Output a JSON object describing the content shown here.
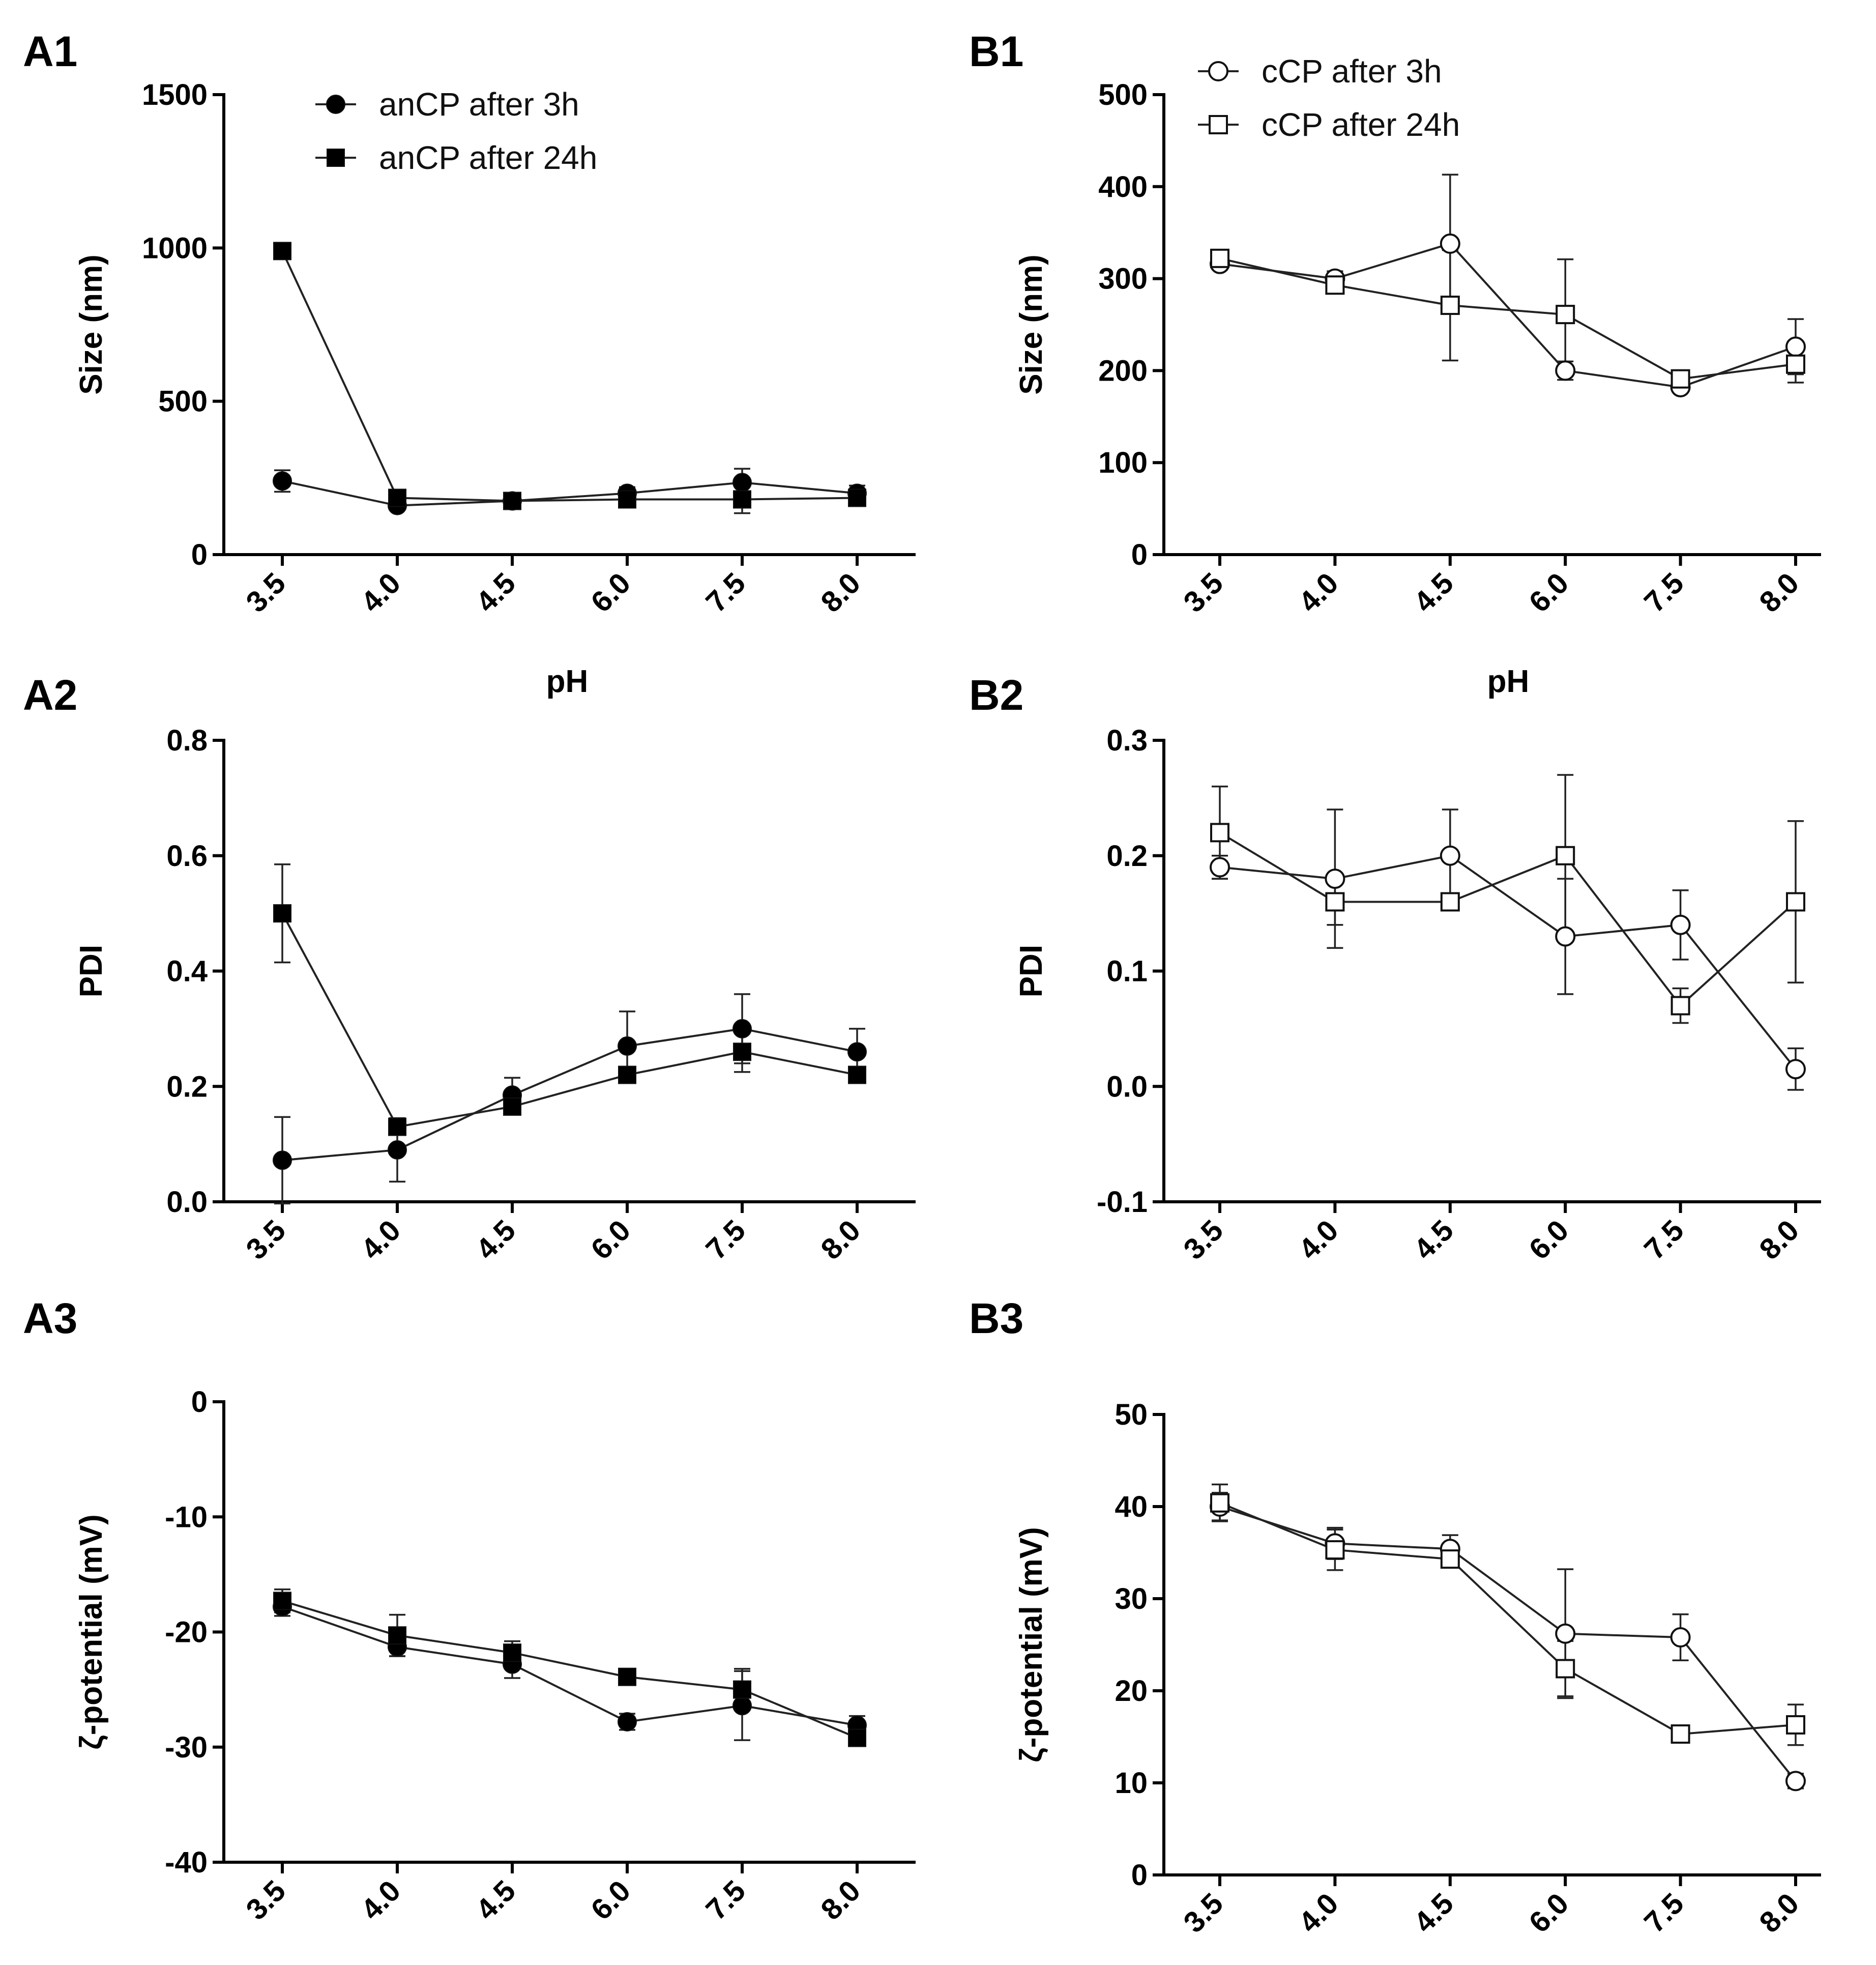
{
  "figure": {
    "panels": [
      "A1",
      "A2",
      "A3",
      "B1",
      "B2",
      "B3"
    ]
  },
  "chart_data": [
    {
      "id": "A1",
      "panel_label": "A1",
      "type": "line",
      "title": "",
      "xlabel": "pH",
      "ylabel": "Size (nm)",
      "categories": [
        "3.5",
        "4.0",
        "4.5",
        "6.0",
        "7.5",
        "8.0"
      ],
      "ylim": [
        0,
        1500
      ],
      "yticks": [
        0,
        500,
        1000,
        1500
      ],
      "legend": "top",
      "series": [
        {
          "name": "anCP after 3h",
          "marker": "circle",
          "fill": "filled",
          "values": [
            240,
            160,
            175,
            200,
            235,
            200
          ],
          "errors": [
            35,
            12,
            10,
            20,
            45,
            25
          ]
        },
        {
          "name": "anCP after 24h",
          "marker": "square",
          "fill": "filled",
          "values": [
            990,
            185,
            175,
            180,
            180,
            185
          ],
          "errors": [
            25,
            15,
            15,
            12,
            45,
            20
          ]
        }
      ]
    },
    {
      "id": "A2",
      "panel_label": "A2",
      "type": "line",
      "title": "",
      "xlabel": "",
      "ylabel": "PDI",
      "categories": [
        "3.5",
        "4.0",
        "4.5",
        "6.0",
        "7.5",
        "8.0"
      ],
      "ylim": [
        0,
        0.8
      ],
      "yticks": [
        0.0,
        0.2,
        0.4,
        0.6,
        0.8
      ],
      "series": [
        {
          "name": "anCP after 3h",
          "marker": "circle",
          "fill": "filled",
          "values": [
            0.072,
            0.09,
            0.185,
            0.27,
            0.3,
            0.26
          ],
          "errors": [
            0.075,
            0.055,
            0.03,
            0.06,
            0.06,
            0.04
          ]
        },
        {
          "name": "anCP after 24h",
          "marker": "square",
          "fill": "filled",
          "values": [
            0.5,
            0.13,
            0.165,
            0.22,
            0.26,
            0.22
          ],
          "errors": [
            0.085,
            0.01,
            0.01,
            0.01,
            0.035,
            0.01
          ]
        }
      ]
    },
    {
      "id": "A3",
      "panel_label": "A3",
      "type": "line",
      "title": "",
      "xlabel": "",
      "ylabel": "ζ-potential (mV)",
      "categories": [
        "3.5",
        "4.0",
        "4.5",
        "6.0",
        "7.5",
        "8.0"
      ],
      "ylim": [
        -40,
        0
      ],
      "yticks": [
        -40,
        -30,
        -20,
        -10,
        0
      ],
      "series": [
        {
          "name": "anCP after 3h",
          "marker": "circle",
          "fill": "filled",
          "values": [
            -17.8,
            -21.3,
            -22.8,
            -27.8,
            -26.4,
            -28.1
          ],
          "errors": [
            0.8,
            0.8,
            1.2,
            0.7,
            3.0,
            0.8
          ]
        },
        {
          "name": "anCP after 24h",
          "marker": "square",
          "fill": "filled",
          "values": [
            -17.3,
            -20.3,
            -21.8,
            -23.9,
            -25.0,
            -29.2
          ],
          "errors": [
            1.0,
            1.8,
            1.0,
            0.5,
            1.8,
            0.5
          ]
        }
      ]
    },
    {
      "id": "B1",
      "panel_label": "B1",
      "type": "line",
      "title": "",
      "xlabel": "pH",
      "ylabel": "Size (nm)",
      "categories": [
        "3.5",
        "4.0",
        "4.5",
        "6.0",
        "7.5",
        "8.0"
      ],
      "ylim": [
        0,
        500
      ],
      "yticks": [
        0,
        100,
        200,
        300,
        400,
        500
      ],
      "legend": "top",
      "series": [
        {
          "name": "cCP after 3h",
          "marker": "circle",
          "fill": "open",
          "values": [
            316,
            300,
            338,
            200,
            182,
            226
          ],
          "errors": [
            6,
            8,
            75,
            10,
            5,
            30
          ]
        },
        {
          "name": "cCP after 24h",
          "marker": "square",
          "fill": "open",
          "values": [
            322,
            293,
            271,
            261,
            191,
            207
          ],
          "errors": [
            6,
            6,
            60,
            60,
            8,
            20
          ]
        }
      ]
    },
    {
      "id": "B2",
      "panel_label": "B2",
      "type": "line",
      "title": "",
      "xlabel": "",
      "ylabel": "PDI",
      "categories": [
        "3.5",
        "4.0",
        "4.5",
        "6.0",
        "7.5",
        "8.0"
      ],
      "ylim": [
        -0.1,
        0.3
      ],
      "yticks": [
        -0.1,
        0.0,
        0.1,
        0.2,
        0.3
      ],
      "series": [
        {
          "name": "cCP after 3h",
          "marker": "circle",
          "fill": "open",
          "values": [
            0.19,
            0.18,
            0.2,
            0.13,
            0.14,
            0.015
          ],
          "errors": [
            0.01,
            0.06,
            0.04,
            0.05,
            0.03,
            0.018
          ]
        },
        {
          "name": "cCP after 24h",
          "marker": "square",
          "fill": "open",
          "values": [
            0.22,
            0.16,
            0.16,
            0.2,
            0.07,
            0.16
          ],
          "errors": [
            0.04,
            0.02,
            0.005,
            0.07,
            0.015,
            0.07
          ]
        }
      ]
    },
    {
      "id": "B3",
      "panel_label": "B3",
      "type": "line",
      "title": "",
      "xlabel": "",
      "ylabel": "ζ-potential (mV)",
      "categories": [
        "3.5",
        "4.0",
        "4.5",
        "6.0",
        "7.5",
        "8.0"
      ],
      "ylim": [
        0,
        50
      ],
      "yticks": [
        0,
        10,
        20,
        30,
        40,
        50
      ],
      "series": [
        {
          "name": "cCP after 3h",
          "marker": "circle",
          "fill": "open",
          "values": [
            40.0,
            36.0,
            35.4,
            26.2,
            25.8,
            10.2
          ],
          "errors": [
            1.5,
            1.7,
            1.5,
            7.0,
            2.5,
            0.8
          ]
        },
        {
          "name": "cCP after 24h",
          "marker": "square",
          "fill": "open",
          "values": [
            40.4,
            35.3,
            34.3,
            22.4,
            15.3,
            16.3
          ],
          "errors": [
            2.0,
            2.2,
            0.5,
            3.0,
            0.5,
            2.2
          ]
        }
      ]
    }
  ]
}
